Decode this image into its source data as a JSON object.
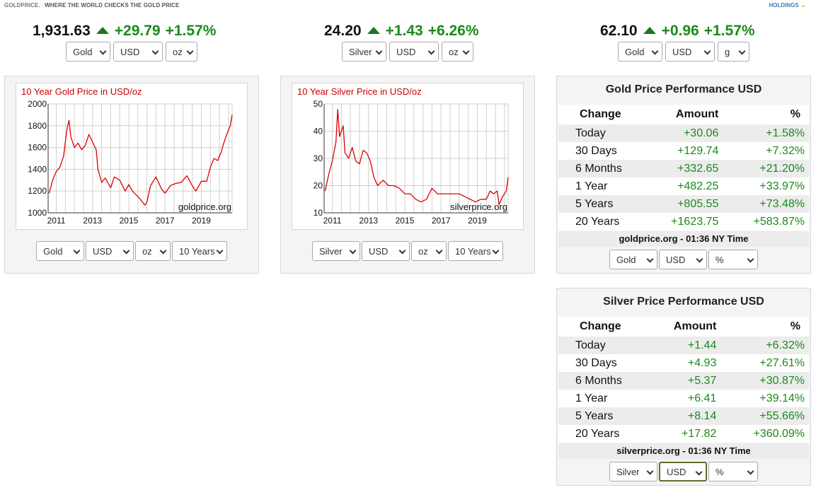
{
  "header": {
    "brand": "GOLDPRICE.",
    "tagline": "WHERE THE WORLD CHECKS THE GOLD PRICE",
    "holdings": "HOLDINGS"
  },
  "tickers": [
    {
      "price": "1,931.63",
      "change": "+29.79",
      "percent": "+1.57%",
      "selects": [
        "Gold",
        "USD",
        "oz"
      ]
    },
    {
      "price": "24.20",
      "change": "+1.43",
      "percent": "+6.26%",
      "selects": [
        "Silver",
        "USD",
        "oz"
      ]
    },
    {
      "price": "62.10",
      "change": "+0.96",
      "percent": "+1.57%",
      "selects": [
        "Gold",
        "USD",
        "g"
      ]
    }
  ],
  "charts": [
    {
      "title": "10 Year Gold Price in USD/oz",
      "watermark": "goldprice.org",
      "selects": [
        "Gold",
        "USD",
        "oz",
        "10 Years"
      ]
    },
    {
      "title": "10 Year Silver Price in USD/oz",
      "watermark": "silverprice.org",
      "selects": [
        "Silver",
        "USD",
        "oz",
        "10 Years"
      ]
    }
  ],
  "chart_data": [
    {
      "type": "line",
      "title": "10 Year Gold Price in USD/oz",
      "xlabel": "",
      "ylabel": "",
      "x": [
        2010.6,
        2010.8,
        2011.0,
        2011.2,
        2011.4,
        2011.6,
        2011.7,
        2011.8,
        2012.0,
        2012.2,
        2012.4,
        2012.6,
        2012.8,
        2013.0,
        2013.2,
        2013.3,
        2013.5,
        2013.7,
        2014.0,
        2014.2,
        2014.5,
        2014.8,
        2015.0,
        2015.2,
        2015.5,
        2015.9,
        2016.0,
        2016.2,
        2016.5,
        2016.8,
        2017.0,
        2017.3,
        2017.6,
        2017.9,
        2018.2,
        2018.5,
        2018.7,
        2019.0,
        2019.3,
        2019.5,
        2019.7,
        2019.9,
        2020.1,
        2020.2,
        2020.4,
        2020.6,
        2020.7
      ],
      "series": [
        {
          "values": [
            1180,
            1300,
            1380,
            1420,
            1520,
            1780,
            1850,
            1700,
            1600,
            1640,
            1580,
            1620,
            1720,
            1650,
            1580,
            1400,
            1280,
            1320,
            1230,
            1330,
            1300,
            1200,
            1260,
            1200,
            1150,
            1070,
            1100,
            1250,
            1330,
            1220,
            1180,
            1250,
            1270,
            1280,
            1340,
            1250,
            1200,
            1290,
            1290,
            1420,
            1500,
            1480,
            1560,
            1620,
            1720,
            1800,
            1900
          ]
        }
      ],
      "ylim": [
        1000,
        2000
      ],
      "xticks": [
        "2011",
        "2013",
        "2015",
        "2017",
        "2019"
      ],
      "yticks": [
        "1000",
        "1200",
        "1400",
        "1600",
        "1800",
        "2000"
      ],
      "grid": true
    },
    {
      "type": "line",
      "title": "10 Year Silver Price in USD/oz",
      "xlabel": "",
      "ylabel": "",
      "x": [
        2010.6,
        2010.8,
        2011.0,
        2011.2,
        2011.3,
        2011.4,
        2011.6,
        2011.7,
        2011.9,
        2012.1,
        2012.3,
        2012.5,
        2012.7,
        2012.9,
        2013.1,
        2013.3,
        2013.5,
        2013.8,
        2014.1,
        2014.4,
        2014.7,
        2015.0,
        2015.3,
        2015.6,
        2015.9,
        2016.2,
        2016.5,
        2016.8,
        2017.1,
        2017.4,
        2017.7,
        2018.0,
        2018.3,
        2018.6,
        2018.9,
        2019.2,
        2019.5,
        2019.7,
        2019.9,
        2020.1,
        2020.2,
        2020.4,
        2020.6,
        2020.7
      ],
      "series": [
        {
          "values": [
            18,
            24,
            29,
            36,
            48,
            38,
            42,
            32,
            30,
            34,
            29,
            28,
            33,
            32,
            29,
            23,
            20,
            22,
            20,
            20,
            19,
            17,
            17,
            15,
            14,
            15,
            19,
            17,
            17,
            17,
            17,
            17,
            16,
            15,
            14,
            15,
            15,
            18,
            17,
            18,
            13,
            16,
            18,
            23
          ]
        }
      ],
      "ylim": [
        10,
        50
      ],
      "xticks": [
        "2011",
        "2013",
        "2015",
        "2017",
        "2019"
      ],
      "yticks": [
        "10",
        "20",
        "30",
        "40",
        "50"
      ],
      "grid": true
    }
  ],
  "perf": [
    {
      "title": "Gold Price Performance USD",
      "headers": [
        "Change",
        "Amount",
        "%"
      ],
      "rows": [
        [
          "Today",
          "+30.06",
          "+1.58%"
        ],
        [
          "30 Days",
          "+129.74",
          "+7.32%"
        ],
        [
          "6 Months",
          "+332.65",
          "+21.20%"
        ],
        [
          "1 Year",
          "+482.25",
          "+33.97%"
        ],
        [
          "5 Years",
          "+805.55",
          "+73.48%"
        ],
        [
          "20 Years",
          "+1623.75",
          "+583.87%"
        ]
      ],
      "footer": "goldprice.org - 01:36 NY Time",
      "selects": [
        "Gold",
        "USD",
        "%"
      ]
    },
    {
      "title": "Silver Price Performance USD",
      "headers": [
        "Change",
        "Amount",
        "%"
      ],
      "rows": [
        [
          "Today",
          "+1.44",
          "+6.32%"
        ],
        [
          "30 Days",
          "+4.93",
          "+27.61%"
        ],
        [
          "6 Months",
          "+5.37",
          "+30.87%"
        ],
        [
          "1 Year",
          "+6.41",
          "+39.14%"
        ],
        [
          "5 Years",
          "+8.14",
          "+55.66%"
        ],
        [
          "20 Years",
          "+17.82",
          "+360.09%"
        ]
      ],
      "footer": "silverprice.org - 01:36 NY Time",
      "selects": [
        "Silver",
        "USD",
        "%"
      ]
    }
  ],
  "colors": {
    "up": "#1a8a1a",
    "line": "#e00000",
    "titleRed": "#cc0000"
  }
}
